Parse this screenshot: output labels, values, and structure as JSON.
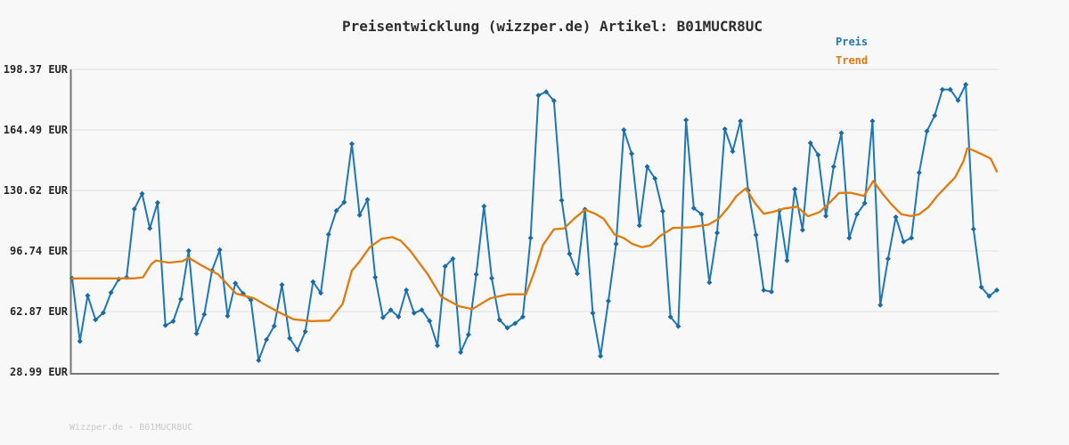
{
  "footer": {
    "text": "Wizzper.de - B01MUCR8UC"
  },
  "chart_data": {
    "type": "line",
    "title": "Preisentwicklung (wizzper.de) Artikel: B01MUCR8UC",
    "xlabel": "",
    "ylabel": "",
    "ylim": [
      28.99,
      198.37
    ],
    "grid": true,
    "legend_position": "top-right",
    "n_points": 120,
    "x_tick_labels": [],
    "y_ticks": [
      {
        "label": "198.37 EUR",
        "value": 198.37
      },
      {
        "label": "164.49 EUR",
        "value": 164.49
      },
      {
        "label": "130.62 EUR",
        "value": 130.62
      },
      {
        "label": "96.74 EUR",
        "value": 96.74
      },
      {
        "label": "62.87 EUR",
        "value": 62.87
      },
      {
        "label": "28.99 EUR",
        "value": 28.99
      }
    ],
    "series": [
      {
        "name": "Preis",
        "color": "#1f77b4",
        "marker": "diamond",
        "values": [
          81.4,
          46.2,
          71.8,
          58.3,
          62.1,
          73.5,
          81.0,
          81.9,
          120.2,
          128.8,
          109.4,
          123.8,
          55.1,
          57.4,
          69.8,
          96.9,
          50.5,
          61.2,
          85.8,
          97.4,
          60.4,
          78.7,
          72.9,
          69.3,
          35.5,
          47.1,
          54.8,
          77.8,
          47.9,
          41.3,
          51.6,
          79.5,
          73.2,
          106.0,
          119.3,
          124.0,
          156.7,
          116.8,
          125.5,
          82.0,
          59.5,
          63.7,
          59.9,
          74.8,
          62.0,
          63.7,
          57.6,
          43.8,
          88.1,
          92.4,
          40.0,
          49.9,
          83.6,
          121.8,
          81.5,
          58.2,
          53.7,
          56.2,
          59.9,
          104.0,
          183.8,
          185.8,
          180.8,
          125.1,
          95.2,
          84.1,
          120.0,
          62.0,
          37.9,
          68.7,
          100.7,
          164.5,
          151.2,
          111.0,
          143.9,
          137.3,
          119.0,
          59.9,
          54.6,
          170.0,
          120.7,
          117.3,
          79.1,
          106.9,
          165.0,
          152.5,
          169.5,
          130.6,
          105.7,
          74.8,
          73.9,
          119.3,
          91.4,
          131.3,
          108.5,
          157.2,
          150.5,
          116.3,
          143.9,
          162.8,
          104.0,
          117.3,
          123.5,
          169.5,
          66.5,
          92.4,
          115.7,
          101.9,
          104.0,
          140.6,
          163.8,
          172.5,
          187.1,
          187.1,
          181.1,
          189.9,
          109.0,
          76.5,
          71.5,
          74.8
        ]
      },
      {
        "name": "Trend",
        "color": "#e07b10",
        "marker": "none",
        "points": [
          [
            0,
            81.4
          ],
          [
            7.9,
            81.4
          ],
          [
            9.1,
            82.0
          ],
          [
            10.2,
            89.5
          ],
          [
            10.8,
            91.4
          ],
          [
            12.5,
            90.2
          ],
          [
            14.2,
            91.0
          ],
          [
            15.0,
            93.0
          ],
          [
            16.5,
            89.0
          ],
          [
            18.8,
            83.6
          ],
          [
            21.1,
            72.9
          ],
          [
            23.4,
            70.3
          ],
          [
            25.1,
            66.0
          ],
          [
            26.8,
            62.0
          ],
          [
            28.5,
            58.5
          ],
          [
            30.8,
            57.5
          ],
          [
            33.1,
            57.8
          ],
          [
            34.8,
            67.0
          ],
          [
            36.0,
            85.8
          ],
          [
            36.9,
            90.3
          ],
          [
            38.3,
            98.9
          ],
          [
            39.8,
            103.5
          ],
          [
            41.2,
            104.5
          ],
          [
            42.3,
            102.4
          ],
          [
            43.5,
            96.9
          ],
          [
            45.7,
            84.1
          ],
          [
            47.5,
            71.2
          ],
          [
            49.8,
            65.8
          ],
          [
            51.5,
            64.2
          ],
          [
            53.8,
            70.3
          ],
          [
            56.1,
            72.5
          ],
          [
            58.4,
            72.5
          ],
          [
            59.5,
            85.3
          ],
          [
            60.6,
            100.2
          ],
          [
            62.0,
            108.9
          ],
          [
            63.3,
            109.4
          ],
          [
            64.7,
            115.2
          ],
          [
            66.0,
            119.8
          ],
          [
            67.3,
            117.6
          ],
          [
            68.4,
            114.8
          ],
          [
            69.8,
            106.0
          ],
          [
            71.0,
            103.9
          ],
          [
            72.1,
            100.7
          ],
          [
            73.3,
            98.9
          ],
          [
            74.4,
            99.9
          ],
          [
            75.6,
            104.9
          ],
          [
            77.3,
            109.6
          ],
          [
            79.6,
            110.0
          ],
          [
            81.9,
            111.5
          ],
          [
            83.2,
            114.8
          ],
          [
            84.4,
            120.9
          ],
          [
            85.5,
            127.6
          ],
          [
            86.7,
            131.8
          ],
          [
            87.9,
            123.4
          ],
          [
            89.0,
            117.6
          ],
          [
            90.1,
            118.5
          ],
          [
            91.6,
            120.5
          ],
          [
            93.3,
            121.5
          ],
          [
            94.7,
            116.2
          ],
          [
            96.2,
            118.5
          ],
          [
            97.3,
            123.0
          ],
          [
            98.7,
            129.2
          ],
          [
            100.2,
            129.3
          ],
          [
            101.9,
            127.6
          ],
          [
            103.1,
            135.9
          ],
          [
            104.2,
            129.3
          ],
          [
            105.4,
            123.0
          ],
          [
            106.7,
            117.3
          ],
          [
            107.9,
            116.3
          ],
          [
            109.0,
            117.3
          ],
          [
            110.2,
            121.3
          ],
          [
            111.3,
            127.4
          ],
          [
            112.5,
            132.9
          ],
          [
            113.6,
            137.8
          ],
          [
            114.7,
            147.0
          ],
          [
            115.2,
            154.2
          ],
          [
            115.9,
            153.2
          ],
          [
            117.0,
            151.0
          ],
          [
            118.2,
            148.5
          ],
          [
            119.0,
            141.2
          ]
        ]
      }
    ]
  }
}
